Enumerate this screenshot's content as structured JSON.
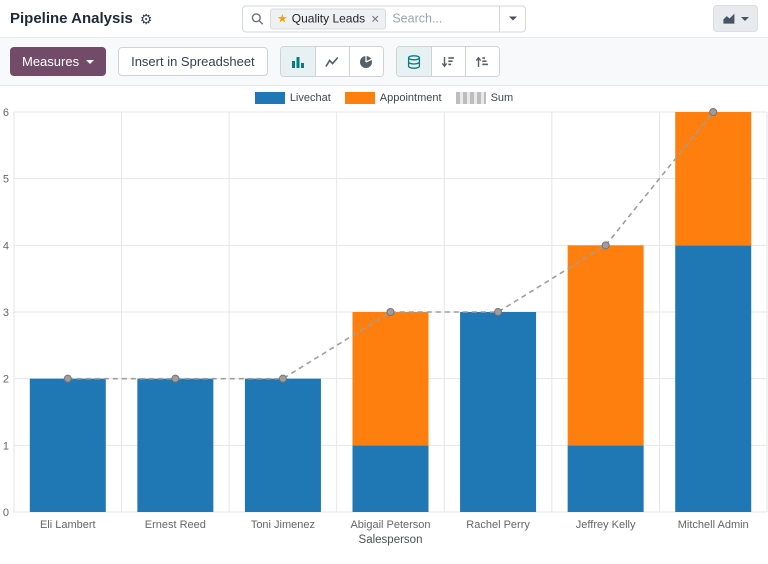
{
  "header": {
    "title": "Pipeline Analysis",
    "search": {
      "facet": "Quality Leads",
      "placeholder": "Search..."
    }
  },
  "icons": {
    "gear": "⚙",
    "star": "★",
    "close": "×"
  },
  "toolbar": {
    "measures_label": "Measures",
    "insert_spreadsheet_label": "Insert in Spreadsheet"
  },
  "colors": {
    "accent_purple": "#714B67",
    "active_teal": "#017e84",
    "livechat_blue": "#1f77b4",
    "appointment_orange": "#ff7f0e",
    "sum_gray": "#9e9e9e"
  },
  "chart_data": {
    "type": "bar",
    "stacked": true,
    "title": "",
    "categories": [
      "Eli Lambert",
      "Ernest Reed",
      "Toni Jimenez",
      "Abigail Peterson",
      "Rachel Perry",
      "Jeffrey Kelly",
      "Mitchell Admin"
    ],
    "series": [
      {
        "name": "Livechat",
        "type": "bar",
        "color": "#1f77b4",
        "values": [
          2,
          2,
          2,
          1,
          3,
          1,
          4
        ]
      },
      {
        "name": "Appointment",
        "type": "bar",
        "color": "#ff7f0e",
        "values": [
          0,
          0,
          0,
          2,
          0,
          3,
          2
        ]
      },
      {
        "name": "Sum",
        "type": "line",
        "dashed": true,
        "color": "#9e9e9e",
        "values": [
          2,
          2,
          2,
          3,
          3,
          4,
          6
        ]
      }
    ],
    "xlabel": "Salesperson",
    "ylabel": "",
    "ylim": [
      0,
      6
    ],
    "yticks": [
      0,
      1,
      2,
      3,
      4,
      5,
      6
    ],
    "grid": true,
    "legend_position": "top"
  }
}
